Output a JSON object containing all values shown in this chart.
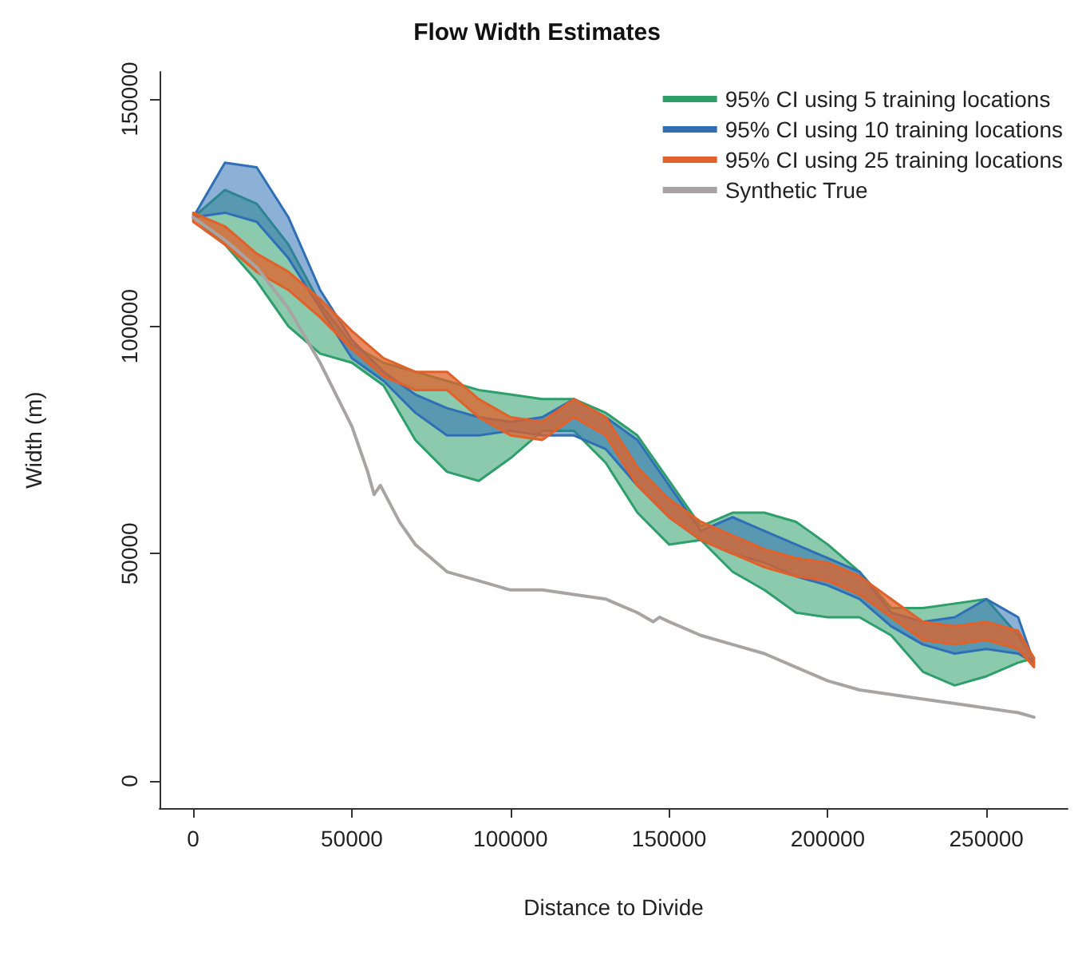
{
  "chart_data": {
    "type": "line",
    "title": "Flow Width Estimates",
    "xlabel": "Distance to Divide",
    "ylabel": "Width (m)",
    "x": [
      0,
      10000,
      20000,
      30000,
      40000,
      50000,
      60000,
      70000,
      80000,
      90000,
      100000,
      110000,
      120000,
      130000,
      140000,
      150000,
      160000,
      170000,
      180000,
      190000,
      200000,
      210000,
      220000,
      230000,
      240000,
      250000,
      260000,
      265000
    ],
    "series": [
      {
        "name": "95% CI using 5 training locations",
        "color": "#2e9e6a",
        "values": [
          null,
          null,
          null,
          null,
          null,
          null,
          null,
          null,
          null,
          null,
          null,
          null,
          null,
          null,
          null,
          null,
          null,
          null,
          null,
          null,
          null,
          null,
          null,
          null,
          null,
          null,
          null,
          null
        ],
        "lower": [
          124000,
          118000,
          110000,
          100000,
          94000,
          92000,
          87000,
          75000,
          68000,
          66000,
          71000,
          77000,
          77000,
          70000,
          59000,
          52000,
          53000,
          46000,
          42000,
          37000,
          36000,
          36000,
          32000,
          24000,
          21000,
          23000,
          26000,
          27000
        ],
        "upper": [
          124000,
          130000,
          127000,
          118000,
          105000,
          96000,
          92000,
          90000,
          88000,
          86000,
          85000,
          84000,
          84000,
          81000,
          76000,
          66000,
          56000,
          59000,
          59000,
          57000,
          52000,
          46000,
          38000,
          38000,
          39000,
          40000,
          32000,
          27000
        ]
      },
      {
        "name": "95% CI using 10 training locations",
        "color": "#2f6fb5",
        "values": [
          null,
          null,
          null,
          null,
          null,
          null,
          null,
          null,
          null,
          null,
          null,
          null,
          null,
          null,
          null,
          null,
          null,
          null,
          null,
          null,
          null,
          null,
          null,
          null,
          null,
          null,
          null,
          null
        ],
        "lower": [
          124000,
          125000,
          123000,
          115000,
          104000,
          93000,
          88000,
          81000,
          76000,
          76000,
          77000,
          76000,
          76000,
          73000,
          65000,
          58000,
          53000,
          50000,
          48000,
          45000,
          43000,
          40000,
          34000,
          30000,
          28000,
          29000,
          28000,
          26000
        ],
        "upper": [
          124000,
          136000,
          135000,
          124000,
          108000,
          97000,
          90000,
          85000,
          82000,
          80000,
          79000,
          80000,
          84000,
          80000,
          75000,
          65000,
          55000,
          58000,
          55000,
          52000,
          49000,
          46000,
          37000,
          35000,
          36000,
          40000,
          36000,
          26000
        ]
      },
      {
        "name": "95% CI using 25 training locations",
        "color": "#e0622a",
        "values": [
          null,
          null,
          null,
          null,
          null,
          null,
          null,
          null,
          null,
          null,
          null,
          null,
          null,
          null,
          null,
          null,
          null,
          null,
          null,
          null,
          null,
          null,
          null,
          null,
          null,
          null,
          null,
          null
        ],
        "lower": [
          123000,
          118000,
          112000,
          108000,
          102000,
          95000,
          89000,
          86000,
          86000,
          80000,
          76000,
          75000,
          80000,
          76000,
          65000,
          58000,
          53000,
          50000,
          47000,
          45000,
          44000,
          41000,
          36000,
          31000,
          30000,
          31000,
          29000,
          25000
        ],
        "upper": [
          125000,
          122000,
          116000,
          112000,
          106000,
          99000,
          93000,
          90000,
          90000,
          84000,
          80000,
          79000,
          84000,
          80000,
          69000,
          62000,
          57000,
          54000,
          51000,
          49000,
          48000,
          45000,
          40000,
          35000,
          34000,
          35000,
          33000,
          27000
        ]
      },
      {
        "name": "Synthetic True",
        "color": "#a8a4a4",
        "x": [
          0,
          10000,
          20000,
          30000,
          40000,
          50000,
          55000,
          57000,
          59000,
          65000,
          70000,
          80000,
          90000,
          100000,
          110000,
          120000,
          130000,
          140000,
          145000,
          147000,
          150000,
          160000,
          170000,
          180000,
          190000,
          200000,
          210000,
          220000,
          230000,
          240000,
          250000,
          260000,
          265000
        ],
        "values": [
          124000,
          119000,
          113000,
          104000,
          92000,
          78000,
          68000,
          63000,
          65000,
          57000,
          52000,
          46000,
          44000,
          42000,
          42000,
          41000,
          40000,
          37000,
          35000,
          36000,
          35000,
          32000,
          30000,
          28000,
          25000,
          22000,
          20000,
          19000,
          18000,
          17000,
          16000,
          15000,
          14000
        ]
      }
    ],
    "xlim": [
      -10600,
      275600
    ],
    "ylim": [
      -6000,
      156000
    ],
    "xticks": [
      0,
      50000,
      100000,
      150000,
      200000,
      250000
    ],
    "yticks": [
      0,
      50000,
      100000,
      150000
    ],
    "grid": false,
    "legend": "top right",
    "marker": "none"
  }
}
